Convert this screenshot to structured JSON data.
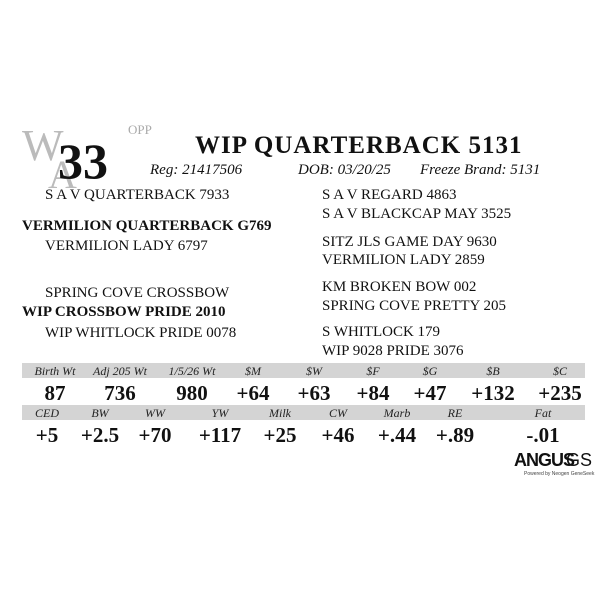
{
  "logo": {
    "letters": [
      "W",
      "A"
    ],
    "tag": "OPP"
  },
  "lot_number": "33",
  "title": "WIP QUARTERBACK 5131",
  "info": [
    "Reg: 21417506",
    "DOB: 03/20/25",
    "Freeze Brand: 5131"
  ],
  "pedigree": {
    "left": [
      "S A V QUARTERBACK 7933",
      "VERMILION QUARTERBACK G769",
      "VERMILION LADY 6797",
      "SPRING COVE CROSSBOW",
      "WIP CROSSBOW PRIDE 2010",
      "WIP WHITLOCK PRIDE 0078"
    ],
    "right": [
      "S A V REGARD 4863",
      "S A V BLACKCAP MAY 3525",
      "SITZ JLS GAME DAY 9630",
      "VERMILION LADY 2859",
      "KM BROKEN BOW 002",
      "SPRING COVE PRETTY 205",
      "S WHITLOCK 179",
      "WIP 9028 PRIDE 3076"
    ]
  },
  "epd_rows": [
    [
      {
        "label": "Birth Wt",
        "value": "87"
      },
      {
        "label": "Adj 205 Wt",
        "value": "736"
      },
      {
        "label": "1/5/26 Wt",
        "value": "980"
      },
      {
        "label": "$M",
        "value": "+64"
      },
      {
        "label": "$W",
        "value": "+63"
      },
      {
        "label": "$F",
        "value": "+84"
      },
      {
        "label": "$G",
        "value": "+47"
      },
      {
        "label": "$B",
        "value": "+132"
      },
      {
        "label": "$C",
        "value": "+235"
      }
    ],
    [
      {
        "label": "CED",
        "value": "+5"
      },
      {
        "label": "BW",
        "value": "+2.5"
      },
      {
        "label": "WW",
        "value": "+70"
      },
      {
        "label": "YW",
        "value": "+117"
      },
      {
        "label": "Milk",
        "value": "+25"
      },
      {
        "label": "CW",
        "value": "+46"
      },
      {
        "label": "Marb",
        "value": "+.44"
      },
      {
        "label": "RE",
        "value": "+.89"
      },
      {
        "label": "Fat",
        "value": "-.01"
      }
    ]
  ],
  "brand": {
    "name": "ANGUS",
    "suffix": "GS",
    "tagline": "Powered by Neogen GeneSeek"
  }
}
